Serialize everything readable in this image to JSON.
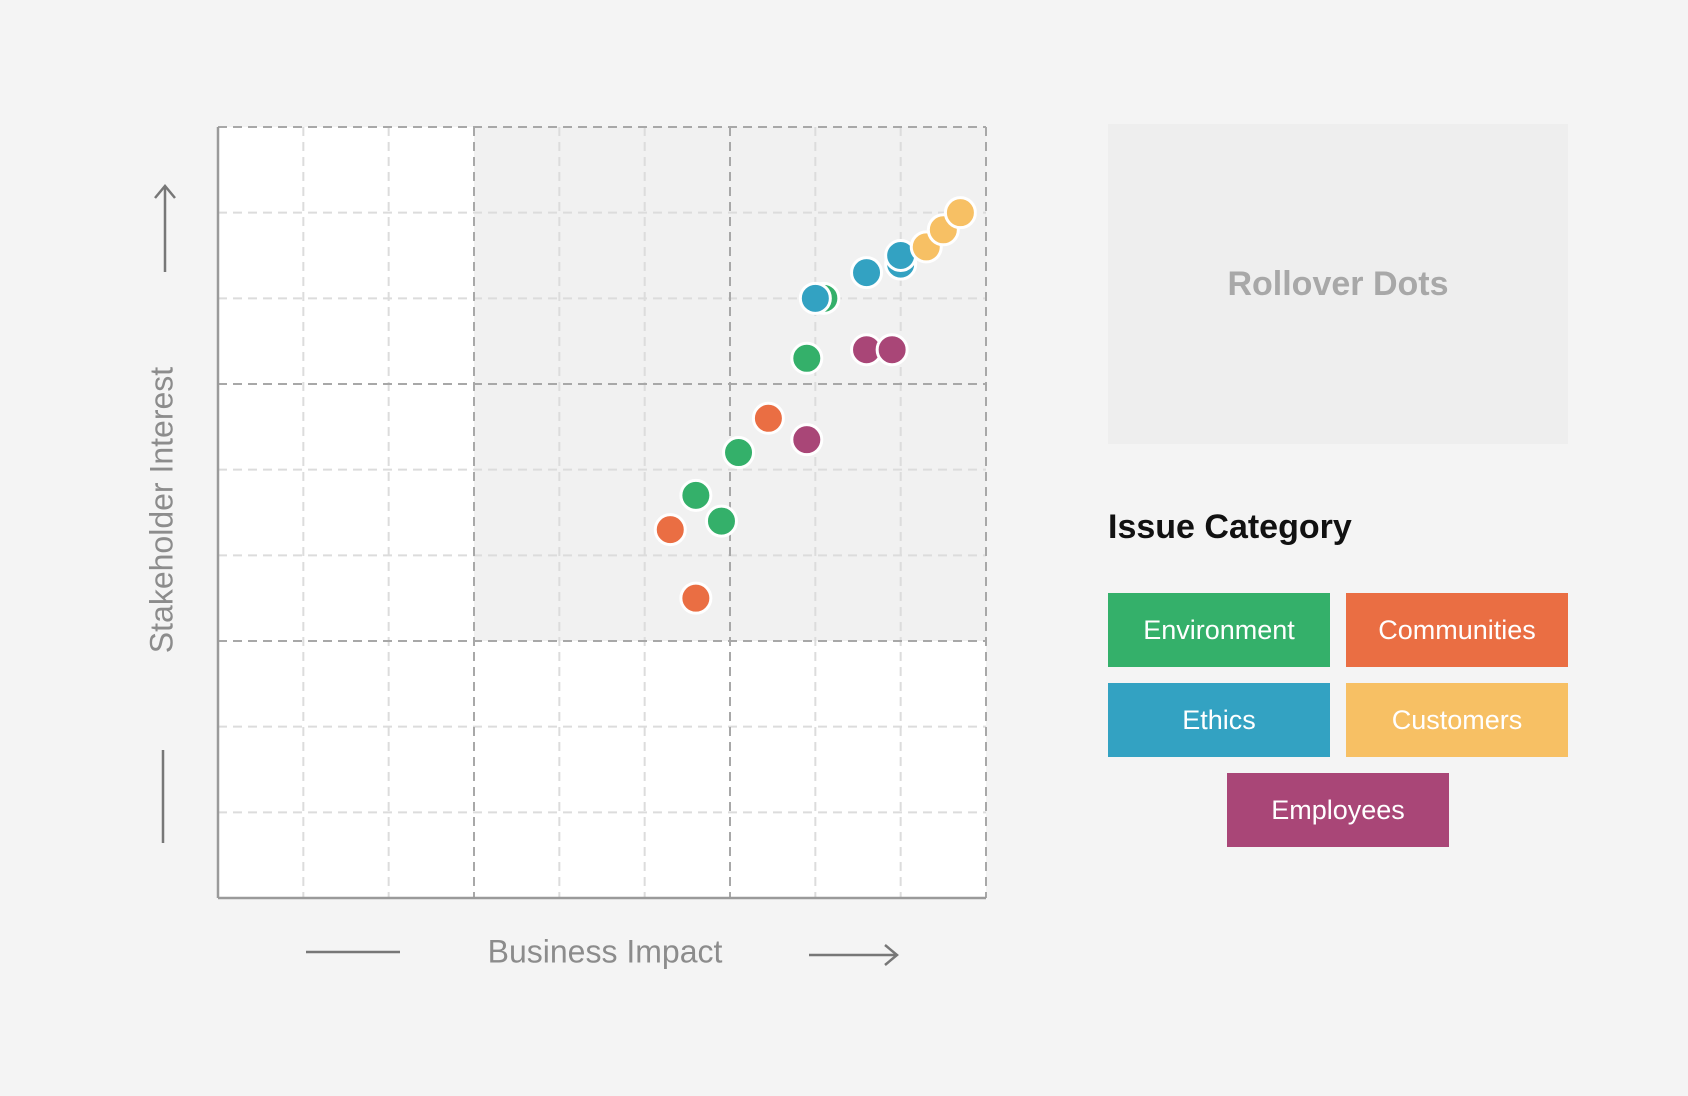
{
  "chart_data": {
    "type": "scatter",
    "xlabel": "Business Impact",
    "ylabel": "Stakeholder Interest",
    "xlim": [
      0,
      9
    ],
    "ylim": [
      0,
      9
    ],
    "grid": true,
    "highlight_region": {
      "x": [
        3,
        9
      ],
      "y": [
        3,
        9
      ]
    },
    "legend_placement": "right",
    "series": [
      {
        "name": "Environment",
        "color": "#34b06a",
        "points": [
          {
            "x": 7.1,
            "y": 7.0
          },
          {
            "x": 6.9,
            "y": 6.3
          },
          {
            "x": 6.1,
            "y": 5.2
          },
          {
            "x": 5.6,
            "y": 4.7
          },
          {
            "x": 5.9,
            "y": 4.4
          }
        ]
      },
      {
        "name": "Communities",
        "color": "#ea6e43",
        "points": [
          {
            "x": 6.45,
            "y": 5.6
          },
          {
            "x": 5.3,
            "y": 4.3
          },
          {
            "x": 5.6,
            "y": 3.5
          }
        ]
      },
      {
        "name": "Ethics",
        "color": "#33a2c2",
        "points": [
          {
            "x": 7.0,
            "y": 7.0
          },
          {
            "x": 7.6,
            "y": 7.3
          },
          {
            "x": 8.0,
            "y": 7.4
          },
          {
            "x": 8.0,
            "y": 7.5
          }
        ]
      },
      {
        "name": "Customers",
        "color": "#f7c064",
        "points": [
          {
            "x": 8.3,
            "y": 7.6
          },
          {
            "x": 8.5,
            "y": 7.8
          },
          {
            "x": 8.7,
            "y": 8.0
          }
        ]
      },
      {
        "name": "Employees",
        "color": "#a94677",
        "points": [
          {
            "x": 7.6,
            "y": 6.4
          },
          {
            "x": 7.9,
            "y": 6.4
          },
          {
            "x": 6.9,
            "y": 5.35
          }
        ]
      }
    ]
  },
  "rollover": {
    "title": "Rollover Dots"
  },
  "legend": {
    "title": "Issue Category",
    "items": [
      {
        "label": "Environment",
        "color": "#34b06a"
      },
      {
        "label": "Communities",
        "color": "#ea6e43"
      },
      {
        "label": "Ethics",
        "color": "#33a2c2"
      },
      {
        "label": "Customers",
        "color": "#f7c064"
      },
      {
        "label": "Employees",
        "color": "#a94677"
      }
    ]
  }
}
